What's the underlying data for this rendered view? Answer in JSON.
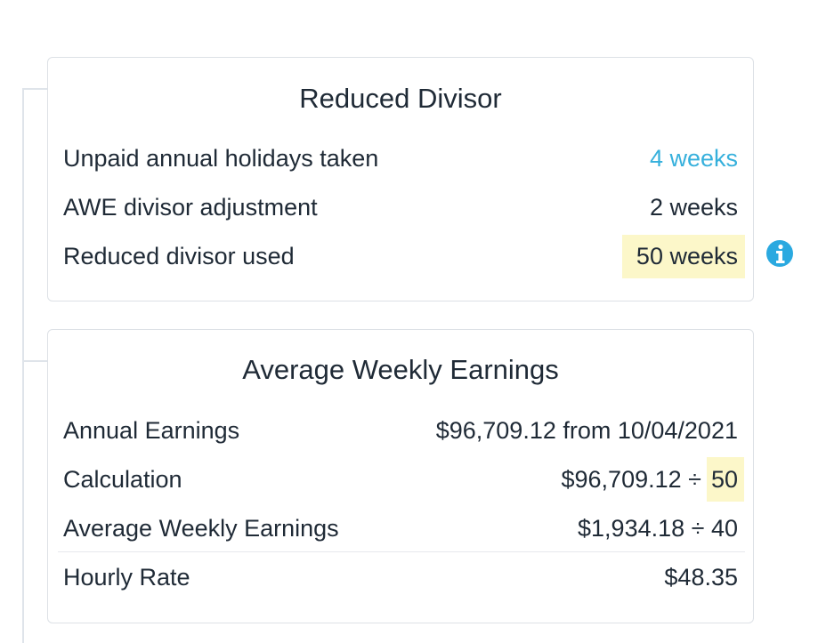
{
  "cards": [
    {
      "title": "Reduced Divisor",
      "rows": [
        {
          "label": "Unpaid annual holidays taken",
          "value": "4 weeks"
        },
        {
          "label": "AWE divisor adjustment",
          "value": "2 weeks"
        },
        {
          "label": "Reduced divisor used",
          "highlight": "50 weeks"
        }
      ]
    },
    {
      "title": "Average Weekly Earnings",
      "rows": [
        {
          "label": "Annual Earnings",
          "value": "$96,709.12 from 10/04/2021"
        },
        {
          "label": "Calculation",
          "value": "$96,709.12 ÷",
          "highlight": "50"
        },
        {
          "label": "Average Weekly Earnings",
          "value": "$1,934.18 ÷ 40"
        },
        {
          "label": "Hourly Rate",
          "value": "$48.35"
        }
      ]
    }
  ]
}
